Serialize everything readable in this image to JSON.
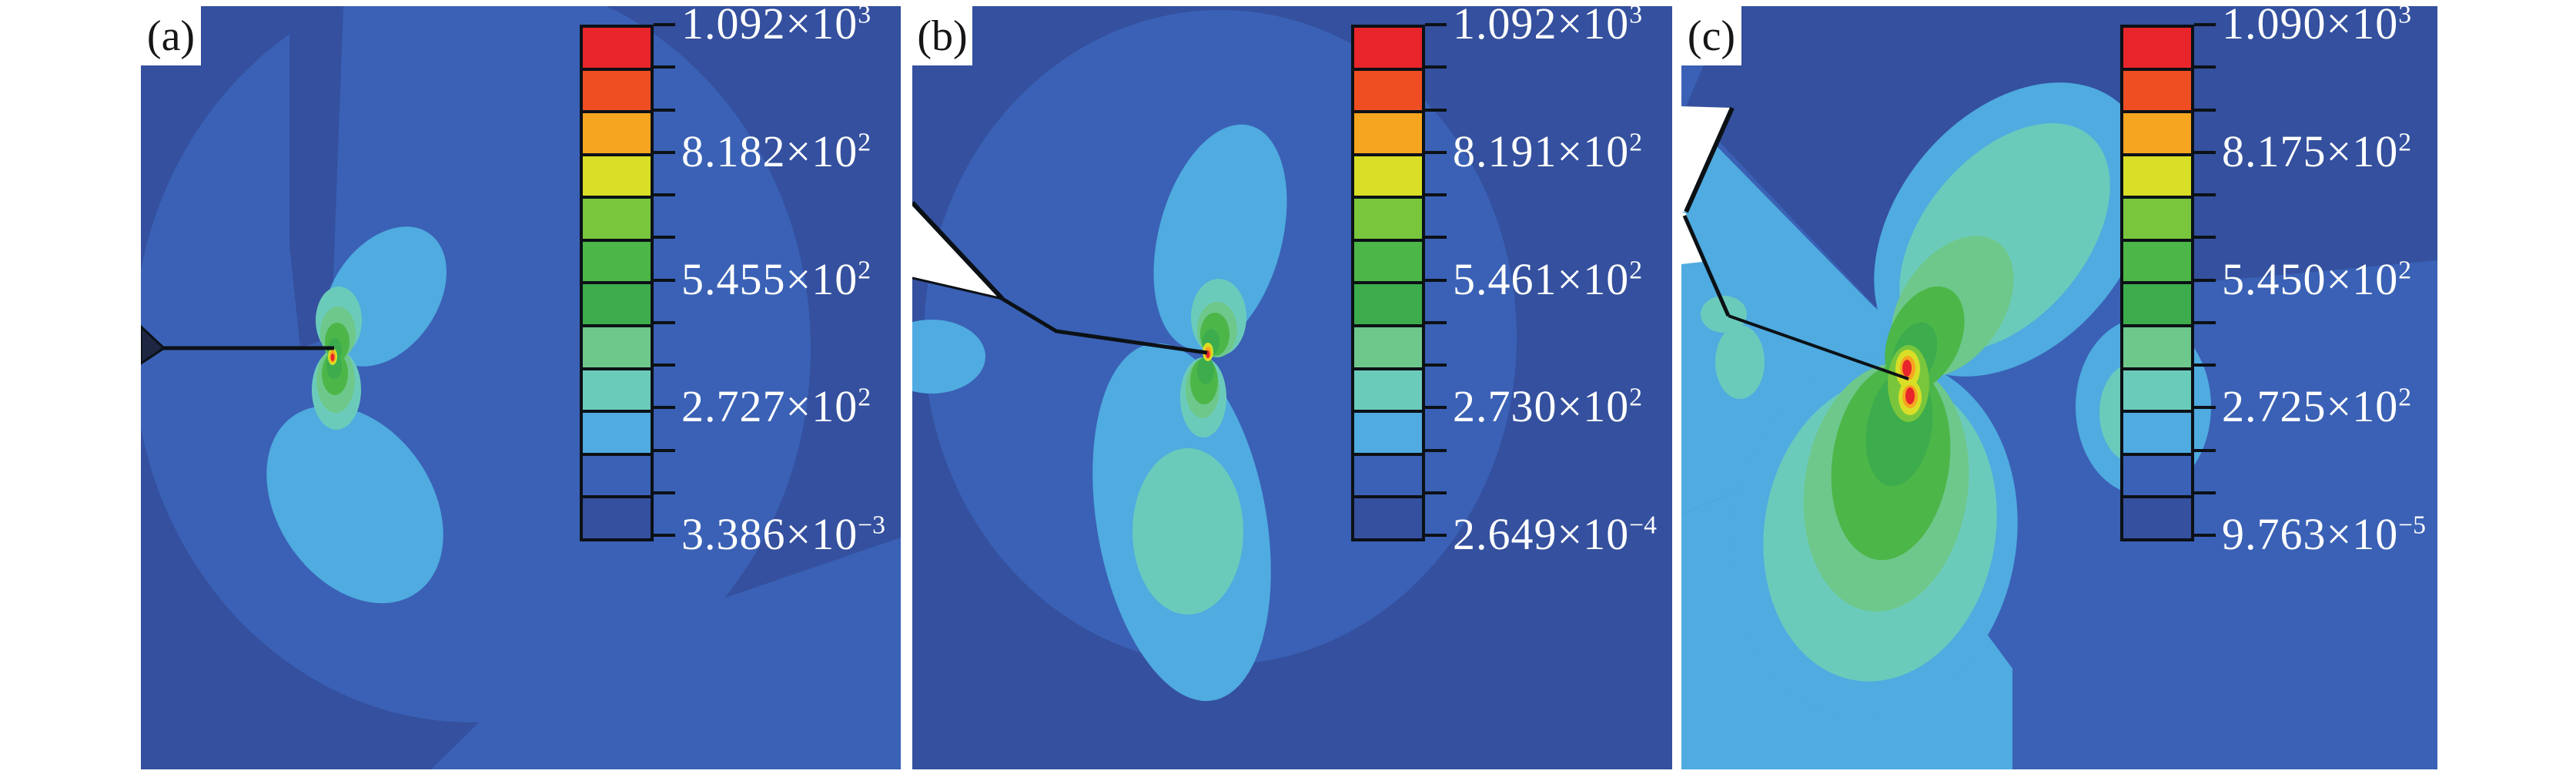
{
  "figure": {
    "panels": [
      {
        "label": "(a)",
        "legend_ticks": [
          {
            "base": "1.092×10",
            "exp": "3"
          },
          {
            "base": "8.182×10",
            "exp": "2"
          },
          {
            "base": "5.455×10",
            "exp": "2"
          },
          {
            "base": "2.727×10",
            "exp": "2"
          },
          {
            "base": "3.386×10",
            "exp": "−3"
          }
        ]
      },
      {
        "label": "(b)",
        "legend_ticks": [
          {
            "base": "1.092×10",
            "exp": "3"
          },
          {
            "base": "8.191×10",
            "exp": "2"
          },
          {
            "base": "5.461×10",
            "exp": "2"
          },
          {
            "base": "2.730×10",
            "exp": "2"
          },
          {
            "base": "2.649×10",
            "exp": "−4"
          }
        ]
      },
      {
        "label": "(c)",
        "legend_ticks": [
          {
            "base": "1.090×10",
            "exp": "3"
          },
          {
            "base": "8.175×10",
            "exp": "2"
          },
          {
            "base": "5.450×10",
            "exp": "2"
          },
          {
            "base": "2.725×10",
            "exp": "2"
          },
          {
            "base": "9.763×10",
            "exp": "−5"
          }
        ]
      }
    ],
    "colorbar": {
      "bands": 12,
      "band_colors_top_to_bottom": [
        "#e8252b",
        "#ef4e23",
        "#f6a520",
        "#d9df26",
        "#79c63c",
        "#4cb648",
        "#3cac4d",
        "#6ec88b",
        "#6bcbbb",
        "#4fabe0",
        "#3a61b5",
        "#34509e"
      ],
      "tick_color": "#0c1116",
      "label_color": "#ffffff"
    }
  },
  "chart_data": [
    {
      "type": "heatmap",
      "subplot": "(a)",
      "legend_tick_labels": [
        "1.092×10³",
        "8.182×10²",
        "5.455×10²",
        "2.727×10²",
        "3.386×10⁻³"
      ],
      "legend_tick_values": [
        1092,
        818.2,
        545.5,
        272.7,
        0.003386
      ],
      "value_range": [
        0.003386,
        1092
      ],
      "colormap_bands": 12,
      "legend_position": "right-inside",
      "description": "Contour field around a horizontal edge crack; small butterfly-shaped stress lobes centered at the crack tip, maximum (red) at the tip."
    },
    {
      "type": "heatmap",
      "subplot": "(b)",
      "legend_tick_labels": [
        "1.092×10³",
        "8.191×10²",
        "5.461×10²",
        "2.730×10²",
        "2.649×10⁻⁴"
      ],
      "legend_tick_values": [
        1092,
        819.1,
        546.1,
        273.0,
        0.0002649
      ],
      "value_range": [
        0.0002649,
        1092
      ],
      "colormap_bands": 12,
      "legend_position": "right-inside",
      "description": "Contour field around an inclined crack entering from a white notch at the left edge; enlarged lower stress lobe below the crack tip."
    },
    {
      "type": "heatmap",
      "subplot": "(c)",
      "legend_tick_labels": [
        "1.090×10³",
        "8.175×10²",
        "5.450×10²",
        "2.725×10²",
        "9.763×10⁻⁵"
      ],
      "legend_tick_values": [
        1090,
        817.5,
        545.0,
        272.5,
        9.763e-05
      ],
      "value_range": [
        9.763e-05,
        1090
      ],
      "colormap_bands": 12,
      "legend_position": "right-inside",
      "description": "Contour field around a kinked crack from the upper-left notch; largest stress lobes with red maxima above and below the crack tip."
    }
  ]
}
